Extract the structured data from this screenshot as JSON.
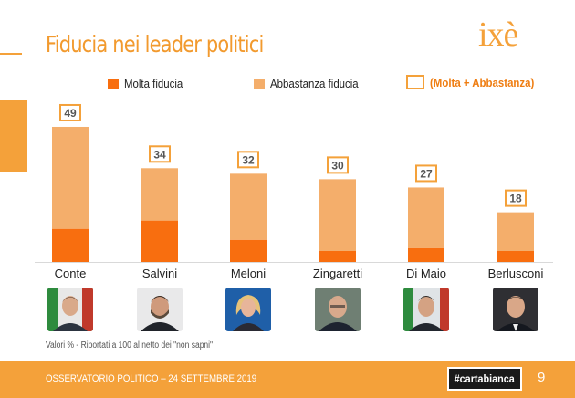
{
  "header": {
    "title": "Fiducia nei leader politici",
    "logo_text": "ixè"
  },
  "legend": {
    "molta": "Molta fiducia",
    "abbastanza": "Abbastanza fiducia",
    "totale": "(Molta + Abbastanza)"
  },
  "colors": {
    "molta": "#f86e0f",
    "abbastanza": "#f4ae6b",
    "accent": "#f4a13a",
    "total_label": "#ef7d11"
  },
  "chart_data": {
    "type": "bar",
    "stacked": true,
    "categories": [
      "Conte",
      "Salvini",
      "Meloni",
      "Zingaretti",
      "Di Maio",
      "Berlusconi"
    ],
    "series": [
      {
        "name": "Molta fiducia",
        "values": [
          12,
          15,
          8,
          4,
          5,
          4
        ]
      },
      {
        "name": "Abbastanza fiducia",
        "values": [
          37,
          19,
          24,
          26,
          22,
          14
        ]
      }
    ],
    "totals": [
      49,
      34,
      32,
      30,
      27,
      18
    ],
    "total_series_name": "(Molta + Abbastanza)",
    "ylim": [
      0,
      50
    ],
    "grid": false,
    "legend_position": "top"
  },
  "photos": [
    "Conte",
    "Salvini",
    "Meloni",
    "Zingaretti",
    "Di Maio",
    "Berlusconi"
  ],
  "footnote": "Valori % - Riportati a 100 al netto dei \"non sapni\"",
  "footer": {
    "text": "OSSERVATORIO POLITICO – 24 SETTEMBRE 2019",
    "brand": "#cartabianca",
    "page": "9"
  }
}
